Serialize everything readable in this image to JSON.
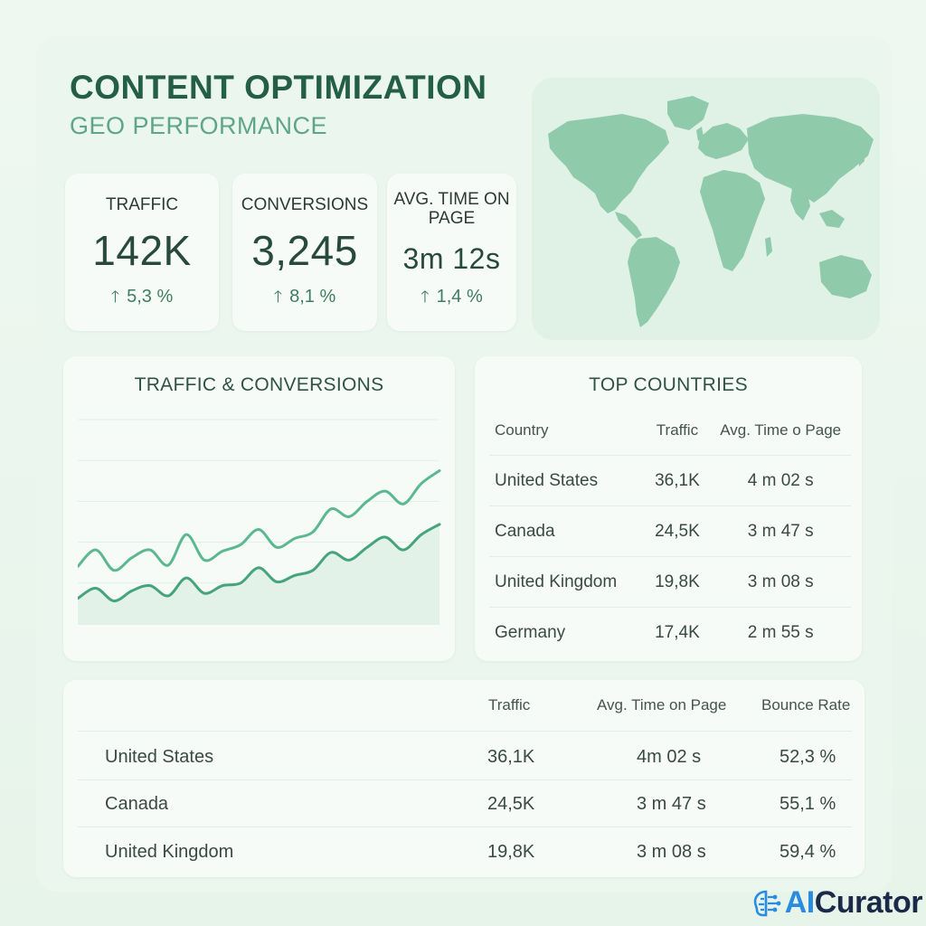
{
  "header": {
    "title": "CONTENT OPTIMIZATION",
    "subtitle": "GEO PERFORMANCE"
  },
  "kpis": [
    {
      "label": "TRAFFIC",
      "value": "142K",
      "change": "5,3 %"
    },
    {
      "label": "CONVERSIONS",
      "value": "3,245",
      "change": "8,1 %"
    },
    {
      "label": "AVG. TIME ON PAGE",
      "value": "3m 12s",
      "change": "1,4 %"
    }
  ],
  "colors": {
    "accent": "#245e48",
    "line": "#4fae86",
    "map": "#8fcaab"
  },
  "icons": {
    "up_arrow": "up-arrow-icon",
    "brain": "brain-circuit-icon"
  },
  "chart": {
    "title": "TRAFFIC & CONVERSIONS",
    "chart_data": {
      "type": "line",
      "x": [
        0,
        1,
        2,
        3,
        4,
        5,
        6,
        7,
        8,
        9,
        10,
        11,
        12,
        13,
        14,
        15,
        16,
        17,
        18,
        19,
        20
      ],
      "series": [
        {
          "values": [
            45,
            58,
            42,
            52,
            58,
            46,
            70,
            50,
            57,
            62,
            74,
            60,
            67,
            72,
            90,
            84,
            96,
            104,
            94,
            110,
            120
          ]
        },
        {
          "values": [
            20,
            28,
            18,
            26,
            30,
            22,
            36,
            24,
            30,
            32,
            44,
            33,
            38,
            42,
            56,
            50,
            60,
            68,
            58,
            70,
            78
          ]
        }
      ],
      "ylim": [
        0,
        160
      ],
      "grid": true
    }
  },
  "top_countries": {
    "title": "TOP COUNTRIES",
    "headers": [
      "Country",
      "Traffic",
      "Avg. Time o Page"
    ],
    "rows": [
      {
        "country": "United States",
        "traffic": "36,1K",
        "time": "4 m 02 s"
      },
      {
        "country": "Canada",
        "traffic": "24,5K",
        "time": "3 m 47 s"
      },
      {
        "country": "United Kingdom",
        "traffic": "19,8K",
        "time": "3 m 08 s"
      },
      {
        "country": "Germany",
        "traffic": "17,4K",
        "time": "2 m 55 s"
      }
    ]
  },
  "bottom_table": {
    "headers": [
      "Traffic",
      "Avg. Time on Page",
      "Bounce Rate"
    ],
    "rows": [
      {
        "country": "United States",
        "traffic": "36,1K",
        "time": "4m 02 s",
        "bounce": "52,3 %"
      },
      {
        "country": "Canada",
        "traffic": "24,5K",
        "time": "3 m 47 s",
        "bounce": "55,1 %"
      },
      {
        "country": "United Kingdom",
        "traffic": "19,8K",
        "time": "3 m 08 s",
        "bounce": "59,4 %"
      }
    ]
  },
  "brand": {
    "prefix": "AI",
    "suffix": "Curator"
  }
}
